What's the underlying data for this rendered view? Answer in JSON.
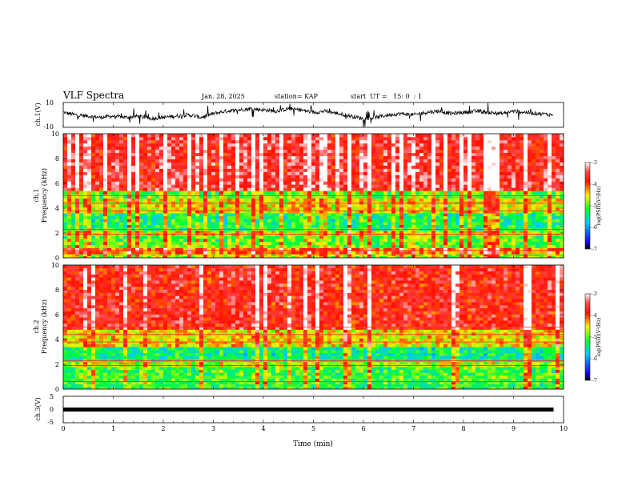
{
  "header": {
    "title": "VLF Spectra",
    "date": "Jan. 28, 2025",
    "station": "station= KAP",
    "start": "start  UT =   15: 0  : 1"
  },
  "colorbar": {
    "label": "log(PSD)(V²/Hz)",
    "ticks": [
      "-3",
      "-4",
      "-5",
      "-6",
      "-7"
    ],
    "range": [
      -7,
      -3
    ],
    "colors": [
      "#000000",
      "#1a00ff",
      "#00c8ff",
      "#00ff30",
      "#fff000",
      "#ff1000",
      "#ff4040",
      "#ffffff"
    ]
  },
  "chart_data": [
    {
      "type": "line",
      "name": "ch1-waveform",
      "ylabel": "ch.1(V)",
      "ylim": [
        -10,
        10
      ],
      "yticks": [
        "10",
        "-10"
      ],
      "xlim": [
        0,
        10
      ],
      "x": [
        0.0,
        0.25,
        0.5,
        0.75,
        1.0,
        1.25,
        1.5,
        1.75,
        2.0,
        2.25,
        2.5,
        2.75,
        3.0,
        3.25,
        3.5,
        3.75,
        4.0,
        4.25,
        4.5,
        4.75,
        5.0,
        5.25,
        5.5,
        5.75,
        6.0,
        6.25,
        6.5,
        6.75,
        7.0,
        7.25,
        7.5,
        7.75,
        8.0,
        8.25,
        8.5,
        8.75,
        9.0,
        9.25,
        9.5,
        9.8
      ],
      "y": [
        2,
        0,
        -1,
        -2,
        -1,
        -2,
        -1,
        -3,
        -2,
        -1,
        0,
        -2,
        1,
        3,
        4,
        5,
        4,
        3,
        5,
        4,
        2,
        3,
        1,
        -1,
        -3,
        -2,
        0,
        1,
        0,
        2,
        3,
        1,
        2,
        3,
        2,
        1,
        3,
        2,
        1,
        0
      ]
    },
    {
      "type": "heatmap",
      "name": "ch1-spectrogram",
      "ylabel": "ch.1\nFrequency (kHz)",
      "ylabel_lines": [
        "ch.1",
        "Frequency (kHz)"
      ],
      "yticks": [
        "0",
        "2",
        "4",
        "6",
        "8",
        "10"
      ],
      "ylim": [
        0,
        10
      ],
      "xlim": [
        0,
        10
      ],
      "bands_khz": [
        {
          "from": 0.0,
          "to": 0.3,
          "value": -4.8
        },
        {
          "from": 0.3,
          "to": 0.8,
          "value": -4.2
        },
        {
          "from": 0.8,
          "to": 1.8,
          "value": -5.0
        },
        {
          "from": 1.8,
          "to": 2.2,
          "value": -4.6
        },
        {
          "from": 2.2,
          "to": 3.6,
          "value": -5.3
        },
        {
          "from": 3.6,
          "to": 4.8,
          "value": -4.6
        },
        {
          "from": 4.8,
          "to": 5.4,
          "value": -5.0
        },
        {
          "from": 5.4,
          "to": 10.0,
          "value": -3.6
        }
      ]
    },
    {
      "type": "heatmap",
      "name": "ch2-spectrogram",
      "ylabel": "ch.2\nFrequency (kHz)",
      "ylabel_lines": [
        "ch.2",
        "Frequency (kHz)"
      ],
      "yticks": [
        "0",
        "2",
        "4",
        "6",
        "8",
        "10"
      ],
      "ylim": [
        0,
        10
      ],
      "xlim": [
        0,
        10
      ],
      "bands_khz": [
        {
          "from": 0.0,
          "to": 0.4,
          "value": -5.2
        },
        {
          "from": 0.4,
          "to": 1.8,
          "value": -5.1
        },
        {
          "from": 1.8,
          "to": 2.2,
          "value": -4.7
        },
        {
          "from": 2.2,
          "to": 3.4,
          "value": -5.4
        },
        {
          "from": 3.4,
          "to": 4.8,
          "value": -4.5
        },
        {
          "from": 4.8,
          "to": 10.0,
          "value": -3.7
        }
      ]
    },
    {
      "type": "line",
      "name": "ch3-waveform",
      "ylabel": "ch.3(V)",
      "ylim": [
        -5,
        5
      ],
      "yticks": [
        "5",
        "0",
        "-5"
      ],
      "xlim": [
        0,
        10
      ],
      "x": [
        0,
        9.8
      ],
      "y": [
        0,
        0
      ],
      "xlabel": "Time (min)",
      "xticks": [
        "0",
        "1",
        "2",
        "3",
        "4",
        "5",
        "6",
        "7",
        "8",
        "9",
        "10"
      ]
    }
  ]
}
